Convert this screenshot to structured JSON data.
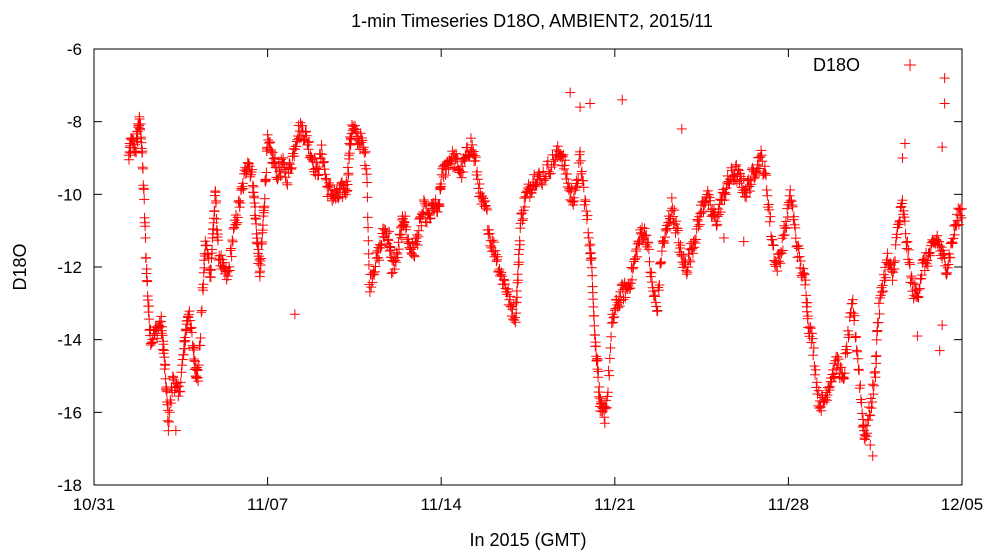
{
  "chart_data": {
    "type": "scatter",
    "title": "1-min Timeseries D18O, AMBIENT2, 2015/11",
    "xlabel": "In 2015 (GMT)",
    "ylabel": "D18O",
    "marker": "+",
    "grid": false,
    "legend_position": "top-right",
    "xlim": [
      0,
      35
    ],
    "ylim": [
      -18,
      -6
    ],
    "x_ticks": [
      {
        "value": 0,
        "label": "10/31"
      },
      {
        "value": 7,
        "label": "11/07"
      },
      {
        "value": 14,
        "label": "11/14"
      },
      {
        "value": 21,
        "label": "11/21"
      },
      {
        "value": 28,
        "label": "11/28"
      },
      {
        "value": 35,
        "label": "12/05"
      }
    ],
    "y_ticks": [
      -6,
      -8,
      -10,
      -12,
      -14,
      -16,
      -18
    ],
    "series": [
      {
        "name": "D18O",
        "color": "#ff0000",
        "trace": [
          [
            1.4,
            -9.0
          ],
          [
            1.5,
            -8.6
          ],
          [
            1.7,
            -8.7
          ],
          [
            1.8,
            -8.0
          ],
          [
            1.9,
            -8.3
          ],
          [
            2.0,
            -9.8
          ],
          [
            2.1,
            -11.8
          ],
          [
            2.2,
            -13.2
          ],
          [
            2.3,
            -14.0
          ],
          [
            2.5,
            -13.8
          ],
          [
            2.7,
            -13.5
          ],
          [
            2.8,
            -14.2
          ],
          [
            2.9,
            -15.2
          ],
          [
            3.0,
            -16.3
          ],
          [
            3.2,
            -15.0
          ],
          [
            3.4,
            -15.6
          ],
          [
            3.6,
            -14.5
          ],
          [
            3.7,
            -13.8
          ],
          [
            3.8,
            -13.2
          ],
          [
            4.0,
            -14.2
          ],
          [
            4.1,
            -14.8
          ],
          [
            4.2,
            -15.0
          ],
          [
            4.4,
            -12.5
          ],
          [
            4.5,
            -11.3
          ],
          [
            4.7,
            -12.2
          ],
          [
            4.8,
            -11.0
          ],
          [
            4.9,
            -10.0
          ],
          [
            5.0,
            -11.5
          ],
          [
            5.2,
            -12.1
          ],
          [
            5.4,
            -12.3
          ],
          [
            5.6,
            -11.2
          ],
          [
            5.8,
            -10.5
          ],
          [
            6.0,
            -9.8
          ],
          [
            6.2,
            -9.0
          ],
          [
            6.4,
            -9.6
          ],
          [
            6.5,
            -10.5
          ],
          [
            6.6,
            -11.5
          ],
          [
            6.7,
            -12.2
          ],
          [
            6.8,
            -11.0
          ],
          [
            6.9,
            -9.8
          ],
          [
            7.0,
            -8.6
          ],
          [
            7.2,
            -9.0
          ],
          [
            7.4,
            -9.4
          ],
          [
            7.6,
            -9.2
          ],
          [
            7.8,
            -9.5
          ],
          [
            8.0,
            -9.0
          ],
          [
            8.2,
            -8.3
          ],
          [
            8.4,
            -8.2
          ],
          [
            8.6,
            -8.5
          ],
          [
            8.8,
            -9.0
          ],
          [
            9.0,
            -9.4
          ],
          [
            9.2,
            -8.8
          ],
          [
            9.4,
            -9.8
          ],
          [
            9.6,
            -10.0
          ],
          [
            9.8,
            -10.1
          ],
          [
            10.0,
            -9.9
          ],
          [
            10.2,
            -9.8
          ],
          [
            10.3,
            -8.8
          ],
          [
            10.4,
            -8.2
          ],
          [
            10.6,
            -8.4
          ],
          [
            10.8,
            -8.6
          ],
          [
            11.0,
            -9.2
          ],
          [
            11.1,
            -12.5
          ],
          [
            11.3,
            -12.0
          ],
          [
            11.5,
            -11.6
          ],
          [
            11.7,
            -11.0
          ],
          [
            11.9,
            -11.2
          ],
          [
            12.0,
            -12.0
          ],
          [
            12.2,
            -11.8
          ],
          [
            12.4,
            -11.0
          ],
          [
            12.5,
            -10.6
          ],
          [
            12.7,
            -11.4
          ],
          [
            12.9,
            -11.6
          ],
          [
            13.1,
            -11.0
          ],
          [
            13.3,
            -10.4
          ],
          [
            13.5,
            -10.7
          ],
          [
            13.7,
            -10.3
          ],
          [
            13.9,
            -10.5
          ],
          [
            14.0,
            -9.6
          ],
          [
            14.2,
            -9.2
          ],
          [
            14.4,
            -9.0
          ],
          [
            14.6,
            -9.1
          ],
          [
            14.8,
            -9.4
          ],
          [
            15.0,
            -9.0
          ],
          [
            15.2,
            -8.6
          ],
          [
            15.4,
            -9.2
          ],
          [
            15.6,
            -10.2
          ],
          [
            15.8,
            -10.4
          ],
          [
            16.0,
            -11.3
          ],
          [
            16.2,
            -11.6
          ],
          [
            16.4,
            -12.2
          ],
          [
            16.6,
            -12.5
          ],
          [
            16.8,
            -13.1
          ],
          [
            17.0,
            -13.3
          ],
          [
            17.1,
            -12.2
          ],
          [
            17.2,
            -10.8
          ],
          [
            17.4,
            -10.1
          ],
          [
            17.6,
            -9.8
          ],
          [
            17.8,
            -9.5
          ],
          [
            18.0,
            -9.6
          ],
          [
            18.3,
            -9.3
          ],
          [
            18.6,
            -9.0
          ],
          [
            18.8,
            -8.8
          ],
          [
            19.0,
            -9.3
          ],
          [
            19.2,
            -10.0
          ],
          [
            19.4,
            -10.1
          ],
          [
            19.6,
            -9.0
          ],
          [
            19.8,
            -10.2
          ],
          [
            20.0,
            -11.4
          ],
          [
            20.1,
            -12.3
          ],
          [
            20.2,
            -14.0
          ],
          [
            20.3,
            -14.6
          ],
          [
            20.4,
            -15.8
          ],
          [
            20.5,
            -16.1
          ],
          [
            20.7,
            -15.6
          ],
          [
            20.9,
            -13.5
          ],
          [
            21.1,
            -13.0
          ],
          [
            21.3,
            -12.7
          ],
          [
            21.5,
            -12.6
          ],
          [
            21.7,
            -12.2
          ],
          [
            21.9,
            -11.5
          ],
          [
            22.1,
            -11.0
          ],
          [
            22.3,
            -11.2
          ],
          [
            22.5,
            -12.5
          ],
          [
            22.7,
            -13.2
          ],
          [
            22.9,
            -11.5
          ],
          [
            23.1,
            -11.0
          ],
          [
            23.3,
            -10.3
          ],
          [
            23.5,
            -11.0
          ],
          [
            23.7,
            -11.8
          ],
          [
            23.9,
            -12.0
          ],
          [
            24.1,
            -11.5
          ],
          [
            24.3,
            -11.0
          ],
          [
            24.5,
            -10.4
          ],
          [
            24.7,
            -10.0
          ],
          [
            24.9,
            -10.5
          ],
          [
            25.1,
            -10.7
          ],
          [
            25.3,
            -10.2
          ],
          [
            25.5,
            -9.8
          ],
          [
            25.7,
            -9.5
          ],
          [
            25.9,
            -9.4
          ],
          [
            26.1,
            -9.7
          ],
          [
            26.3,
            -9.9
          ],
          [
            26.5,
            -9.6
          ],
          [
            26.7,
            -9.2
          ],
          [
            26.9,
            -9.0
          ],
          [
            27.1,
            -9.6
          ],
          [
            27.3,
            -11.0
          ],
          [
            27.5,
            -12.0
          ],
          [
            27.7,
            -11.6
          ],
          [
            27.9,
            -10.8
          ],
          [
            28.1,
            -10.0
          ],
          [
            28.3,
            -11.2
          ],
          [
            28.5,
            -12.0
          ],
          [
            28.7,
            -12.5
          ],
          [
            28.8,
            -13.5
          ],
          [
            29.0,
            -14.2
          ],
          [
            29.2,
            -15.6
          ],
          [
            29.4,
            -15.8
          ],
          [
            29.6,
            -15.3
          ],
          [
            29.8,
            -14.9
          ],
          [
            30.0,
            -14.6
          ],
          [
            30.2,
            -15.2
          ],
          [
            30.4,
            -14.0
          ],
          [
            30.6,
            -13.0
          ],
          [
            30.8,
            -14.5
          ],
          [
            31.0,
            -16.2
          ],
          [
            31.1,
            -16.7
          ],
          [
            31.3,
            -15.9
          ],
          [
            31.5,
            -15.0
          ],
          [
            31.6,
            -13.5
          ],
          [
            31.8,
            -12.5
          ],
          [
            32.0,
            -11.8
          ],
          [
            32.2,
            -12.3
          ],
          [
            32.4,
            -11.0
          ],
          [
            32.6,
            -10.3
          ],
          [
            32.8,
            -11.5
          ],
          [
            33.0,
            -12.6
          ],
          [
            33.2,
            -12.8
          ],
          [
            33.4,
            -12.0
          ],
          [
            33.6,
            -11.8
          ],
          [
            33.8,
            -11.5
          ],
          [
            34.0,
            -11.2
          ],
          [
            34.2,
            -11.7
          ],
          [
            34.4,
            -12.0
          ],
          [
            34.6,
            -11.3
          ],
          [
            34.8,
            -10.7
          ],
          [
            35.0,
            -10.4
          ]
        ],
        "spikes": [
          [
            19.2,
            -7.2
          ],
          [
            19.6,
            -7.6
          ],
          [
            20.0,
            -7.5
          ],
          [
            21.3,
            -7.4
          ],
          [
            23.7,
            -8.2
          ],
          [
            32.6,
            -9.0
          ],
          [
            32.7,
            -8.6
          ],
          [
            34.3,
            -6.8
          ],
          [
            34.3,
            -7.5
          ],
          [
            34.2,
            -8.7
          ],
          [
            33.2,
            -13.9
          ],
          [
            34.1,
            -14.3
          ],
          [
            34.2,
            -13.6
          ],
          [
            31.4,
            -17.2
          ],
          [
            31.3,
            -16.9
          ],
          [
            8.1,
            -13.3
          ],
          [
            26.2,
            -11.3
          ],
          [
            25.4,
            -11.2
          ],
          [
            20.6,
            -16.3
          ],
          [
            3.3,
            -16.5
          ]
        ]
      }
    ]
  },
  "legend": {
    "label": "D18O"
  }
}
